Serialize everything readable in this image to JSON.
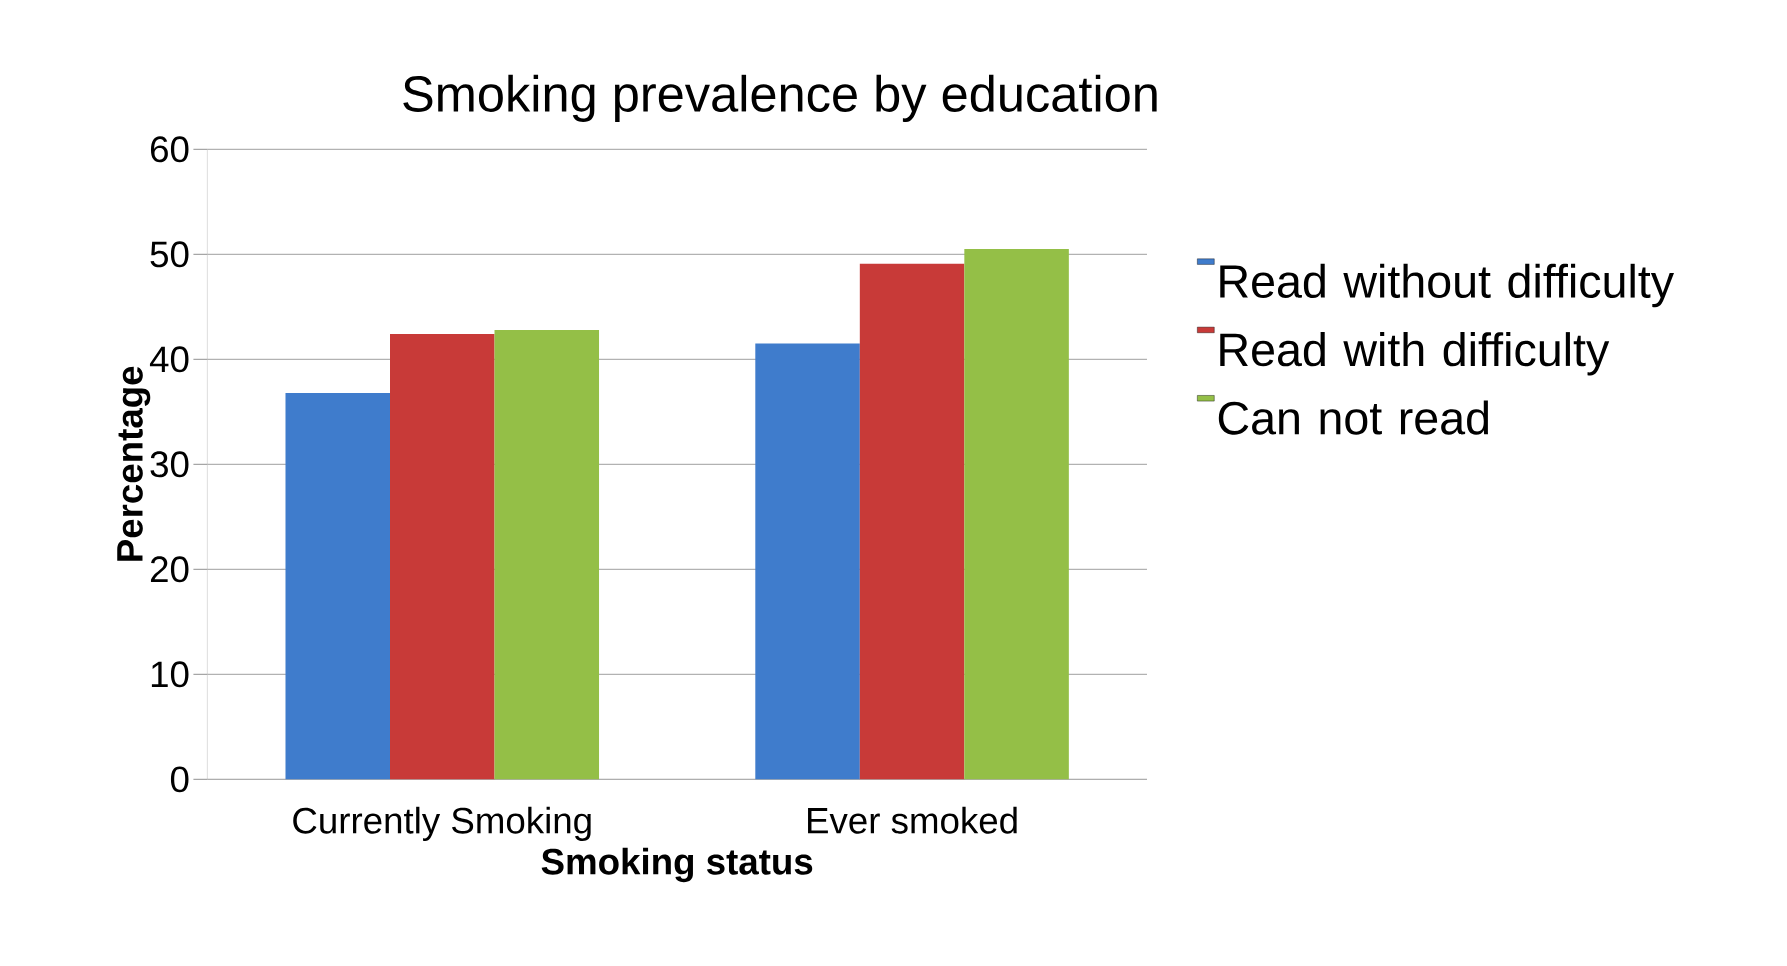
{
  "chart_data": {
    "type": "bar",
    "title": "Smoking prevalence by education",
    "xlabel": "Smoking status",
    "ylabel": "Percentage",
    "categories": [
      "Currently Smoking",
      "Ever smoked"
    ],
    "series": [
      {
        "name": "Read without difficulty",
        "color": "#3f7ccc",
        "values": [
          36.8,
          41.5
        ]
      },
      {
        "name": "Read with difficulty",
        "color": "#c83a38",
        "values": [
          42.4,
          49.1
        ]
      },
      {
        "name": "Can not read",
        "color": "#94bf47",
        "values": [
          42.8,
          50.5
        ]
      }
    ],
    "ylim": [
      0,
      60
    ],
    "yticks": [
      0,
      10,
      20,
      30,
      40,
      50,
      60
    ],
    "grid": "y",
    "legend": "right"
  }
}
